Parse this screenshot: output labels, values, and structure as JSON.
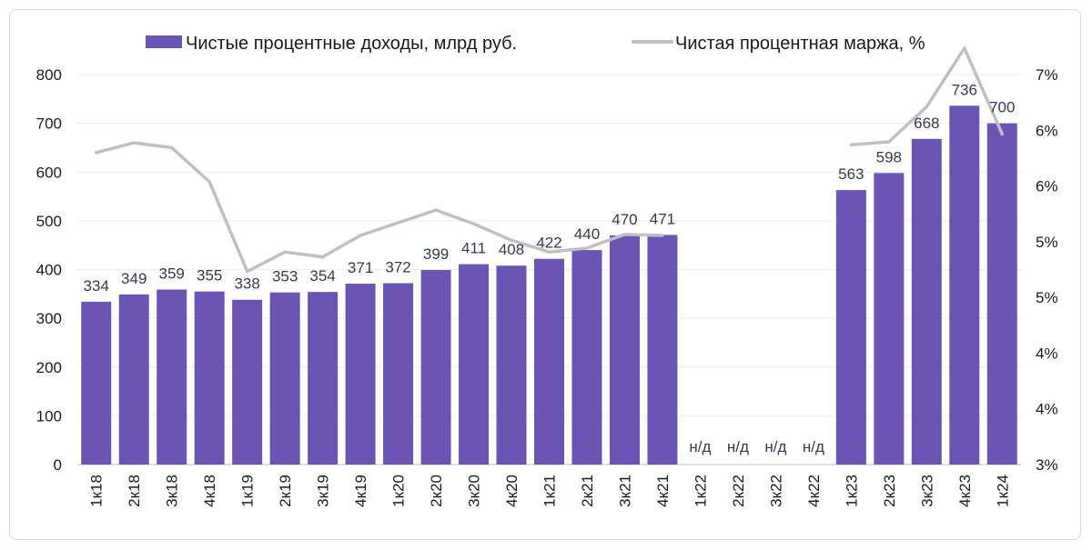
{
  "chart_data": {
    "type": "bar",
    "categories": [
      "1к18",
      "2к18",
      "3к18",
      "4к18",
      "1к19",
      "2к19",
      "3к19",
      "4к19",
      "1к20",
      "2к20",
      "3к20",
      "4к20",
      "1к21",
      "2к21",
      "3к21",
      "4к21",
      "1к22",
      "2к22",
      "3к22",
      "4к22",
      "1к23",
      "2к23",
      "3к23",
      "4к23",
      "1к24"
    ],
    "series": [
      {
        "name": "Чистые процентные доходы, млрд руб.",
        "axis": "left",
        "kind": "bar",
        "color": "#6a54b4",
        "values": [
          334,
          349,
          359,
          355,
          338,
          353,
          354,
          371,
          372,
          399,
          411,
          408,
          422,
          440,
          470,
          471,
          null,
          null,
          null,
          null,
          563,
          598,
          668,
          736,
          700
        ],
        "labels": [
          "334",
          "349",
          "359",
          "355",
          "338",
          "353",
          "354",
          "371",
          "372",
          "399",
          "411",
          "408",
          "422",
          "440",
          "470",
          "471",
          "н/д",
          "н/д",
          "н/д",
          "н/д",
          "563",
          "598",
          "668",
          "736",
          "700"
        ]
      },
      {
        "name": "Чистая процентная маржа, %",
        "axis": "right",
        "kind": "line",
        "color": "#c0c0c0",
        "values": [
          6.2,
          6.3,
          6.25,
          5.9,
          4.98,
          5.18,
          5.13,
          5.35,
          5.48,
          5.61,
          5.47,
          5.3,
          5.18,
          5.22,
          5.36,
          5.35,
          null,
          null,
          null,
          null,
          6.28,
          6.31,
          6.67,
          7.27,
          6.39
        ]
      }
    ],
    "y_left": {
      "min": 0,
      "max": 800,
      "ticks": [
        "0",
        "100",
        "200",
        "300",
        "400",
        "500",
        "600",
        "700",
        "800"
      ]
    },
    "y_right": {
      "min": 3,
      "max": 7,
      "ticks": [
        "3%",
        "4%",
        "4%",
        "5%",
        "5%",
        "6%",
        "6%",
        "7%"
      ]
    },
    "grid": true,
    "legend": "top"
  }
}
